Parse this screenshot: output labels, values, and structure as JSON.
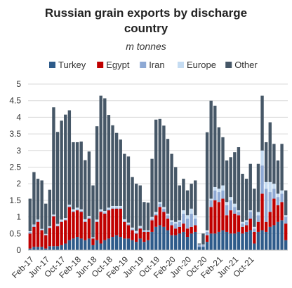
{
  "chart_data": {
    "type": "bar",
    "stacked": true,
    "title_line1": "Russian grain exports by discharge",
    "title_line2": "country",
    "subtitle": "m tonnes",
    "ylim": [
      0,
      5
    ],
    "yticks": [
      "0",
      "0.5",
      "1",
      "1.5",
      "2",
      "2.5",
      "3",
      "3.5",
      "4",
      "4.5",
      "5"
    ],
    "xtick_labels": [
      "Feb-17",
      "Jun-17",
      "Oct-17",
      "Feb-18",
      "Jun-18",
      "Oct-18",
      "Feb-19",
      "Jun-19",
      "Oct-19",
      "Feb-20",
      "Jun-20",
      "Oct-20",
      "Feb-21",
      "Jun-21",
      "Oct-21"
    ],
    "xtick_every": 4,
    "legend_position": "top",
    "series": [
      {
        "name": "Turkey",
        "color": "#2e5b8a",
        "values": [
          0.05,
          0.1,
          0.1,
          0.1,
          0.05,
          0.12,
          0.12,
          0.12,
          0.15,
          0.2,
          0.3,
          0.35,
          0.4,
          0.35,
          0.3,
          0.35,
          0.15,
          0.3,
          0.2,
          0.3,
          0.35,
          0.4,
          0.45,
          0.4,
          0.35,
          0.35,
          0.3,
          0.25,
          0.35,
          0.25,
          0.3,
          0.55,
          0.7,
          0.75,
          0.7,
          0.6,
          0.45,
          0.45,
          0.5,
          0.55,
          0.4,
          0.5,
          0.55,
          0.1,
          0.1,
          0.25,
          0.5,
          0.5,
          0.55,
          0.6,
          0.55,
          0.5,
          0.5,
          0.55,
          0.5,
          0.55,
          0.6,
          0.2,
          0.55,
          0.6,
          0.55,
          0.7,
          0.75,
          0.85,
          0.9,
          0.3
        ]
      },
      {
        "name": "Egypt",
        "color": "#c00000",
        "values": [
          0.45,
          0.6,
          0.75,
          0.5,
          0.4,
          0.55,
          0.9,
          0.6,
          0.7,
          0.7,
          1.0,
          0.8,
          0.8,
          0.8,
          0.55,
          0.6,
          0.2,
          0.55,
          0.95,
          0.8,
          0.85,
          0.85,
          0.8,
          0.85,
          0.5,
          0.4,
          0.3,
          0.25,
          0.3,
          0.3,
          0.25,
          0.35,
          0.35,
          0.55,
          0.45,
          0.35,
          0.3,
          0.2,
          0.2,
          0.25,
          0.25,
          0.2,
          0.2,
          0.0,
          0.0,
          0.2,
          0.8,
          1.0,
          0.9,
          0.95,
          0.5,
          0.7,
          0.6,
          0.5,
          0.2,
          0.2,
          0.35,
          0.35,
          0.3,
          1.1,
          0.3,
          0.45,
          0.8,
          0.5,
          0.55,
          0.5
        ]
      },
      {
        "name": "Iran",
        "color": "#8ea9d4",
        "values": [
          0.05,
          0.05,
          0.05,
          0.02,
          0.02,
          0.02,
          0.02,
          0.02,
          0.02,
          0.02,
          0.02,
          0.03,
          0.03,
          0.03,
          0.03,
          0.03,
          0.02,
          0.02,
          0.03,
          0.03,
          0.03,
          0.03,
          0.03,
          0.03,
          0.03,
          0.03,
          0.03,
          0.03,
          0.03,
          0.03,
          0.03,
          0.05,
          0.05,
          0.1,
          0.1,
          0.1,
          0.1,
          0.15,
          0.15,
          0.3,
          0.3,
          0.4,
          0.2,
          0.05,
          0.05,
          0.1,
          0.2,
          0.3,
          0.3,
          0.25,
          0.3,
          0.3,
          0.2,
          0.1,
          0.1,
          0.1,
          0.2,
          0.1,
          0.2,
          0.85,
          1.0,
          0.6,
          0.3,
          0.25,
          0.25,
          0.2
        ]
      },
      {
        "name": "Europe",
        "color": "#c5dcf2",
        "values": [
          0.02,
          0.02,
          0.02,
          0.02,
          0.02,
          0.03,
          0.03,
          0.05,
          0.05,
          0.05,
          0.05,
          0.05,
          0.05,
          0.05,
          0.05,
          0.05,
          0.02,
          0.05,
          0.05,
          0.05,
          0.05,
          0.05,
          0.05,
          0.05,
          0.05,
          0.05,
          0.05,
          0.05,
          0.05,
          0.02,
          0.02,
          0.05,
          0.05,
          0.05,
          0.05,
          0.05,
          0.05,
          0.05,
          0.05,
          0.1,
          0.1,
          0.15,
          0.1,
          0.02,
          0.02,
          0.05,
          0.05,
          0.1,
          0.1,
          0.15,
          0.1,
          0.1,
          0.1,
          0.05,
          0.05,
          0.05,
          0.05,
          0.05,
          0.1,
          0.45,
          0.2,
          0.3,
          0.15,
          0.1,
          0.1,
          0.05
        ]
      },
      {
        "name": "Other",
        "color": "#465767",
        "values": [
          0.98,
          1.58,
          1.23,
          1.46,
          0.91,
          1.1,
          3.23,
          2.77,
          2.98,
          3.11,
          2.84,
          2.02,
          1.97,
          2.04,
          1.78,
          1.94,
          1.56,
          2.81,
          3.42,
          3.39,
          2.79,
          2.43,
          2.2,
          2.0,
          1.97,
          1.99,
          1.52,
          1.42,
          1.22,
          0.85,
          0.83,
          1.75,
          2.78,
          2.5,
          2.45,
          2.25,
          2.0,
          1.65,
          1.05,
          0.95,
          0.75,
          0.75,
          1.05,
          0.03,
          0.33,
          2.95,
          2.95,
          2.45,
          1.85,
          1.45,
          1.25,
          1.2,
          1.55,
          1.9,
          1.45,
          1.25,
          1.4,
          1.15,
          1.45,
          1.65,
          1.2,
          1.8,
          1.2,
          1.0,
          1.4,
          0.75
        ]
      }
    ]
  }
}
